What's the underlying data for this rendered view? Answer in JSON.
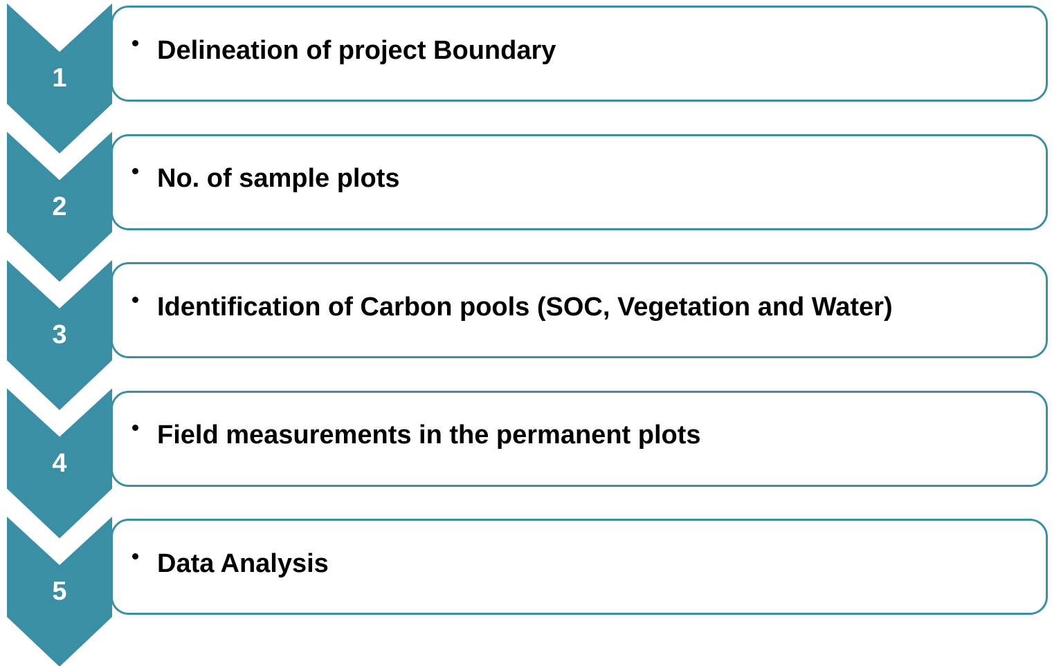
{
  "steps": [
    {
      "number": "1",
      "text": "Delineation of project Boundary"
    },
    {
      "number": "2",
      "text": "No. of sample plots"
    },
    {
      "number": "3",
      "text": "Identification of Carbon pools (SOC, Vegetation and Water)"
    },
    {
      "number": "4",
      "text": "Field measurements in the permanent plots"
    },
    {
      "number": "5",
      "text": "Data Analysis"
    }
  ]
}
